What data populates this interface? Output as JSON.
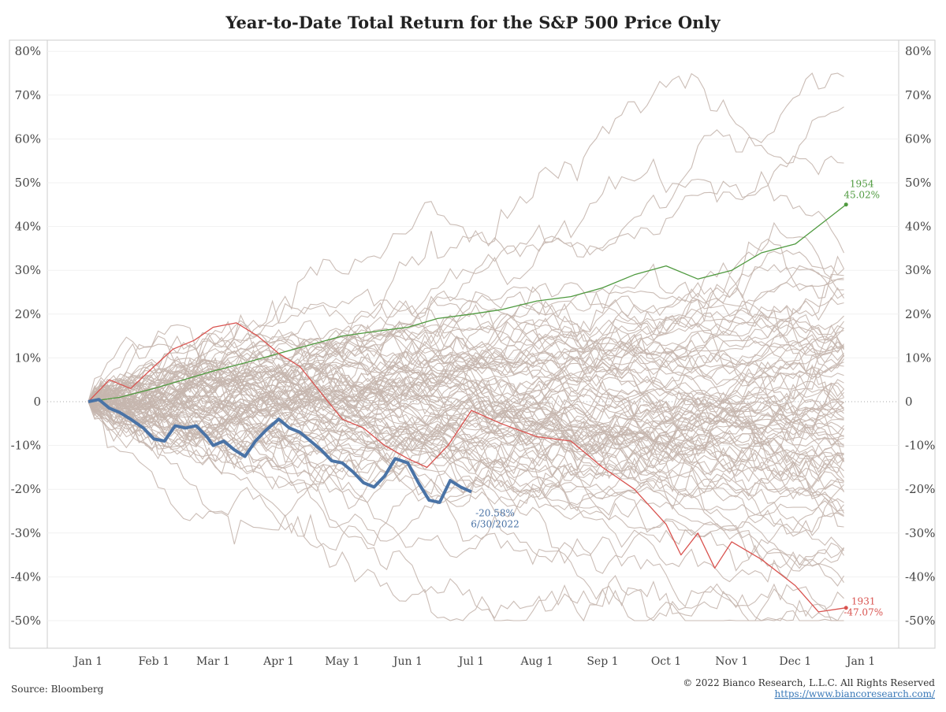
{
  "chart_data": {
    "type": "line",
    "title": "Year-to-Date Total Return for the S&P 500 Price Only",
    "xlabel": "",
    "ylabel": "",
    "x_range": [
      0,
      365
    ],
    "ylim": [
      -55,
      80
    ],
    "y_ticks": [
      80,
      70,
      60,
      50,
      40,
      30,
      20,
      10,
      0,
      -10,
      -20,
      -30,
      -40,
      -50
    ],
    "y_tick_labels": [
      "80%",
      "70%",
      "60%",
      "50%",
      "40%",
      "30%",
      "20%",
      "10%",
      "0",
      "-10%",
      "-20%",
      "-30%",
      "-40%",
      "-50%"
    ],
    "x_ticks": [
      0,
      31,
      59,
      90,
      120,
      151,
      181,
      212,
      243,
      273,
      304,
      334,
      365
    ],
    "x_tick_labels": [
      "Jan 1",
      "Feb 1",
      "Mar 1",
      "Apr 1",
      "May 1",
      "Jun 1",
      "Jul 1",
      "Aug 1",
      "Sep 1",
      "Oct 1",
      "Nov 1",
      "Dec 1",
      "Jan 1"
    ],
    "zero_line": "dotted",
    "colors": {
      "history": "#c5b6ae",
      "y1954": "#4f9a3f",
      "y1931": "#d9534f",
      "y2022": "#4a73a6",
      "axis": "#bbbbbb",
      "zero": "#aaaaaa"
    },
    "highlight_series": [
      {
        "name": "1954",
        "x": [
          0,
          15,
          31,
          45,
          59,
          75,
          90,
          105,
          120,
          135,
          151,
          165,
          181,
          195,
          212,
          228,
          243,
          258,
          273,
          288,
          304,
          318,
          334,
          350,
          358
        ],
        "values": [
          0,
          1,
          3,
          5,
          7,
          9,
          11,
          13,
          15,
          16,
          17,
          19,
          20,
          21,
          23,
          24,
          26,
          29,
          31,
          28,
          30,
          34,
          36,
          42,
          45.02
        ],
        "end_label_year": "1954",
        "end_label_value": "45.02%"
      },
      {
        "name": "1931",
        "x": [
          0,
          10,
          20,
          31,
          40,
          50,
          59,
          70,
          80,
          90,
          100,
          110,
          120,
          130,
          140,
          151,
          160,
          170,
          181,
          195,
          212,
          228,
          243,
          258,
          273,
          280,
          288,
          296,
          304,
          318,
          334,
          345,
          358
        ],
        "values": [
          0,
          5,
          3,
          8,
          12,
          14,
          17,
          18,
          15,
          11,
          8,
          2,
          -4,
          -6,
          -10,
          -13,
          -15,
          -10,
          -2,
          -5,
          -8,
          -9,
          -15,
          -20,
          -28,
          -35,
          -30,
          -38,
          -32,
          -36,
          -42,
          -48,
          -47.07
        ],
        "end_label_year": "1931",
        "end_label_value": "-47.07%"
      },
      {
        "name": "2022",
        "x": [
          0,
          5,
          10,
          15,
          20,
          26,
          31,
          36,
          41,
          46,
          51,
          56,
          59,
          64,
          69,
          74,
          79,
          84,
          90,
          95,
          100,
          105,
          110,
          115,
          120,
          125,
          130,
          135,
          140,
          145,
          151,
          156,
          161,
          166,
          171,
          176,
          181
        ],
        "values": [
          0,
          0.5,
          -1.5,
          -2.5,
          -4,
          -6,
          -8.5,
          -9,
          -5.5,
          -6,
          -5.5,
          -8,
          -10,
          -9,
          -11,
          -12.5,
          -9,
          -6.5,
          -4,
          -6,
          -7,
          -9,
          -11,
          -13.5,
          -14,
          -16,
          -18.5,
          -19.5,
          -17,
          -13,
          -14,
          -18.5,
          -22.5,
          -23,
          -18,
          -19.5,
          -20.58
        ],
        "end_label_value": "-20.58%",
        "end_label_date": "6/30/2022"
      }
    ],
    "background_series_count": 93,
    "background_series_note": "Other historical years of the S&P 500, drawn in light grey"
  },
  "footer": {
    "source": "Source: Bloomberg",
    "copyright": "© 2022 Bianco Research, L.L.C. All Rights Reserved",
    "url": "https://www.biancoresearch.com/"
  }
}
